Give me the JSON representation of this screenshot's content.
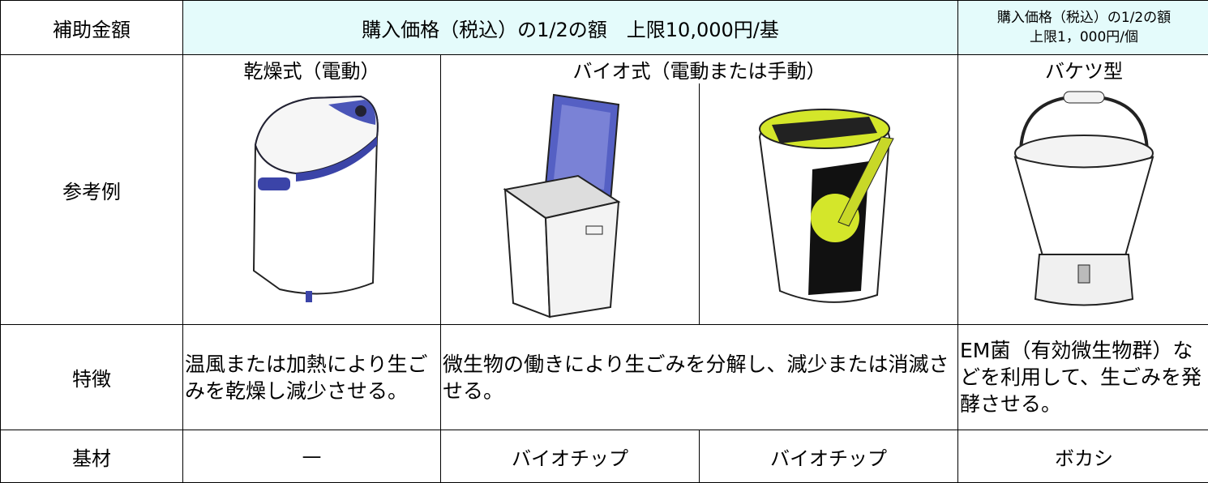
{
  "header": {
    "label": "補助金額",
    "amount_main": "購入価格（税込）の1/2の額　上限10,000円/基",
    "amount_bucket": [
      "購入価格（税込）の1/2の額",
      "上限1，000円/個"
    ]
  },
  "types": [
    "乾燥式（電動）",
    "バイオ式（電動または手動）",
    "バケツ型"
  ],
  "reference": {
    "label": "参考例"
  },
  "features": {
    "label": "特徴",
    "values": [
      "温風または加熱により生ごみを乾燥し減少させる。",
      "微生物の働きにより生ごみを分解し、減少または消滅させる。",
      "EM菌（有効微生物群）などを利用して、生ごみを発酵させる。"
    ]
  },
  "base": {
    "label": "基材",
    "values": [
      "—",
      "バイオチップ",
      "バイオチップ",
      "ボカシ"
    ]
  }
}
